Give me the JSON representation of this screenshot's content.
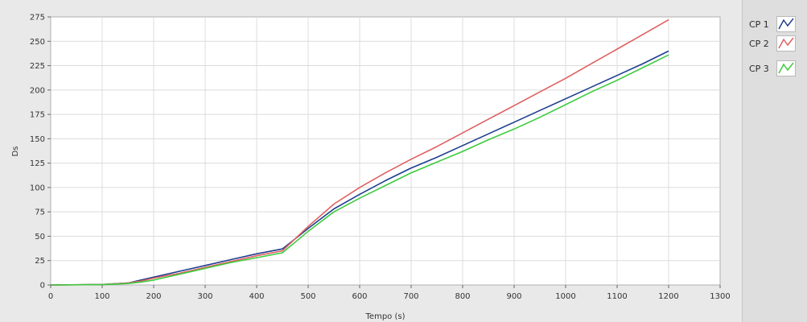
{
  "chart_data": {
    "type": "line",
    "title": "",
    "xlabel": "Tempo (s)",
    "ylabel": "Ds",
    "xlim": [
      0,
      1300
    ],
    "ylim": [
      0,
      275
    ],
    "xticks": [
      0,
      100,
      200,
      300,
      400,
      500,
      600,
      700,
      800,
      900,
      1000,
      1100,
      1200,
      1300
    ],
    "yticks": [
      0,
      25,
      50,
      75,
      100,
      125,
      150,
      175,
      200,
      225,
      250,
      275
    ],
    "grid": true,
    "legend_position": "right",
    "series": [
      {
        "name": "CP 1",
        "color": "#1f3e8f",
        "x": [
          0,
          100,
          150,
          175,
          200,
          250,
          300,
          350,
          400,
          450,
          500,
          550,
          600,
          650,
          700,
          750,
          800,
          850,
          900,
          950,
          1000,
          1050,
          1100,
          1150,
          1200
        ],
        "y": [
          0,
          0.5,
          2,
          5,
          8,
          14,
          20,
          26,
          32,
          37,
          58,
          78,
          93,
          107,
          120,
          131,
          143,
          155,
          167,
          179,
          191,
          203,
          215,
          227,
          240
        ]
      },
      {
        "name": "CP 2",
        "color": "#e06060",
        "x": [
          0,
          100,
          150,
          175,
          200,
          250,
          300,
          350,
          400,
          450,
          500,
          550,
          600,
          650,
          700,
          750,
          800,
          850,
          900,
          950,
          1000,
          1050,
          1100,
          1150,
          1200
        ],
        "y": [
          0,
          0.5,
          2,
          4,
          7,
          12,
          18,
          24,
          30,
          35,
          60,
          83,
          100,
          115,
          129,
          142,
          156,
          170,
          184,
          198,
          212,
          227,
          242,
          257,
          272
        ]
      },
      {
        "name": "CP 3",
        "color": "#3ecb3e",
        "x": [
          0,
          100,
          150,
          175,
          200,
          250,
          300,
          350,
          400,
          450,
          500,
          550,
          600,
          650,
          700,
          750,
          800,
          850,
          900,
          950,
          1000,
          1050,
          1100,
          1150,
          1200
        ],
        "y": [
          0,
          0.3,
          1.5,
          3,
          5,
          11,
          17,
          23,
          28,
          33,
          55,
          75,
          89,
          102,
          115,
          126,
          137,
          149,
          160,
          172,
          185,
          198,
          210,
          223,
          236
        ]
      }
    ]
  }
}
